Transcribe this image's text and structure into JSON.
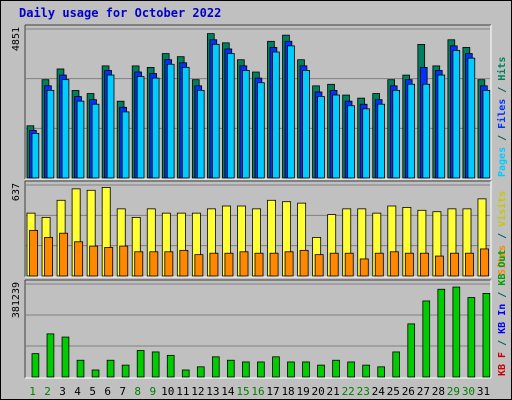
{
  "title": "Daily usage for October 2022",
  "chart_data": [
    {
      "type": "bar",
      "panel": "top",
      "ymax_label": "4851",
      "ylim": [
        0,
        4851
      ],
      "categories": [
        "1",
        "2",
        "3",
        "4",
        "5",
        "6",
        "7",
        "8",
        "9",
        "10",
        "11",
        "12",
        "13",
        "14",
        "15",
        "16",
        "17",
        "18",
        "19",
        "20",
        "21",
        "22",
        "23",
        "24",
        "25",
        "26",
        "27",
        "28",
        "29",
        "30",
        "31"
      ],
      "series": [
        {
          "name": "Hits",
          "color": "#00805c",
          "values": [
            1700,
            3200,
            3550,
            2850,
            2750,
            3650,
            2500,
            3650,
            3600,
            4050,
            3950,
            3200,
            4700,
            4400,
            3850,
            3450,
            4450,
            4650,
            3850,
            3000,
            3050,
            2700,
            2600,
            2750,
            3200,
            3350,
            4350,
            3650,
            4500,
            4250,
            3200
          ]
        },
        {
          "name": "Files",
          "color": "#0033ff",
          "values": [
            1600,
            3050,
            3400,
            2700,
            2600,
            3550,
            2350,
            3500,
            3450,
            3900,
            3800,
            3050,
            4550,
            4250,
            3700,
            3300,
            4300,
            4500,
            3700,
            2850,
            2900,
            2550,
            2450,
            2600,
            3050,
            3250,
            3650,
            3550,
            4350,
            4100,
            3050
          ]
        },
        {
          "name": "Pages",
          "color": "#00ccff",
          "values": [
            1550,
            2950,
            3300,
            2600,
            2500,
            3450,
            2250,
            3400,
            3350,
            3800,
            3700,
            2950,
            4450,
            4150,
            3600,
            3200,
            4200,
            4400,
            3600,
            2750,
            2800,
            2450,
            2350,
            2500,
            2950,
            3150,
            3150,
            3450,
            4250,
            4000,
            2950
          ]
        }
      ]
    },
    {
      "type": "bar",
      "panel": "middle",
      "ymax_label": "637",
      "ylim": [
        0,
        637
      ],
      "categories": [
        "1",
        "2",
        "3",
        "4",
        "5",
        "6",
        "7",
        "8",
        "9",
        "10",
        "11",
        "12",
        "13",
        "14",
        "15",
        "16",
        "17",
        "18",
        "19",
        "20",
        "21",
        "22",
        "23",
        "24",
        "25",
        "26",
        "27",
        "28",
        "29",
        "30",
        "31"
      ],
      "series": [
        {
          "name": "Visits",
          "color": "#ffff33",
          "values": [
            440,
            410,
            530,
            610,
            600,
            620,
            470,
            410,
            470,
            440,
            440,
            440,
            470,
            490,
            490,
            470,
            530,
            520,
            510,
            270,
            430,
            470,
            470,
            440,
            490,
            480,
            460,
            450,
            470,
            470,
            540
          ]
        },
        {
          "name": "Sites",
          "color": "#ff8800",
          "values": [
            330,
            280,
            310,
            250,
            220,
            210,
            220,
            180,
            180,
            180,
            190,
            160,
            170,
            170,
            180,
            170,
            170,
            180,
            190,
            160,
            170,
            170,
            130,
            170,
            180,
            170,
            170,
            150,
            170,
            170,
            200
          ]
        }
      ]
    },
    {
      "type": "bar",
      "panel": "bottom",
      "ymax_label": "381239",
      "ylim": [
        0,
        381239
      ],
      "categories": [
        "1",
        "2",
        "3",
        "4",
        "5",
        "6",
        "7",
        "8",
        "9",
        "10",
        "11",
        "12",
        "13",
        "14",
        "15",
        "16",
        "17",
        "18",
        "19",
        "20",
        "21",
        "22",
        "23",
        "24",
        "25",
        "26",
        "27",
        "28",
        "29",
        "30",
        "31"
      ],
      "series": [
        {
          "name": "KB F",
          "color": "#cc0000",
          "values": [
            0,
            0,
            0,
            0,
            0,
            0,
            0,
            0,
            0,
            0,
            0,
            0,
            0,
            0,
            0,
            0,
            0,
            0,
            0,
            0,
            0,
            0,
            0,
            0,
            0,
            0,
            0,
            0,
            0,
            0,
            0
          ]
        },
        {
          "name": "KB In",
          "color": "#0000ff",
          "values": [
            0,
            0,
            0,
            0,
            0,
            0,
            0,
            0,
            0,
            0,
            0,
            0,
            0,
            0,
            0,
            0,
            0,
            0,
            0,
            0,
            0,
            0,
            0,
            0,
            0,
            0,
            0,
            0,
            0,
            0,
            0
          ]
        },
        {
          "name": "KB Out",
          "color": "#00cc00",
          "values": [
            108000,
            189000,
            176000,
            81000,
            41000,
            81000,
            61000,
            121000,
            115000,
            101000,
            41000,
            54000,
            95000,
            81000,
            74000,
            74000,
            95000,
            74000,
            74000,
            61000,
            81000,
            74000,
            61000,
            54000,
            115000,
            230000,
            324000,
            372000,
            381000,
            338000,
            355000
          ]
        }
      ]
    }
  ],
  "right_labels": {
    "top": [
      {
        "text": "Pages",
        "color": "#00ccff"
      },
      {
        "text": " / ",
        "color": "#006060"
      },
      {
        "text": "Files",
        "color": "#0033ff"
      },
      {
        "text": " / ",
        "color": "#006060"
      },
      {
        "text": "Hits",
        "color": "#00805c"
      }
    ],
    "middle": [
      {
        "text": "Sites",
        "color": "#ff8800"
      },
      {
        "text": " / ",
        "color": "#006060"
      },
      {
        "text": "Visits",
        "color": "#c8c800"
      }
    ],
    "bottom": [
      {
        "text": "KB F",
        "color": "#cc0000"
      },
      {
        "text": " / ",
        "color": "#006060"
      },
      {
        "text": "KB In",
        "color": "#0000ff"
      },
      {
        "text": " / ",
        "color": "#006060"
      },
      {
        "text": "KB Out",
        "color": "#00a000"
      }
    ]
  },
  "weekend_days": [
    "1",
    "2",
    "8",
    "9",
    "15",
    "16",
    "22",
    "23",
    "29",
    "30"
  ],
  "colors": {
    "weekday_label": "#000000",
    "weekend_label": "#008000",
    "panel_bg": "#c0c0c0",
    "grid": "#808080"
  }
}
